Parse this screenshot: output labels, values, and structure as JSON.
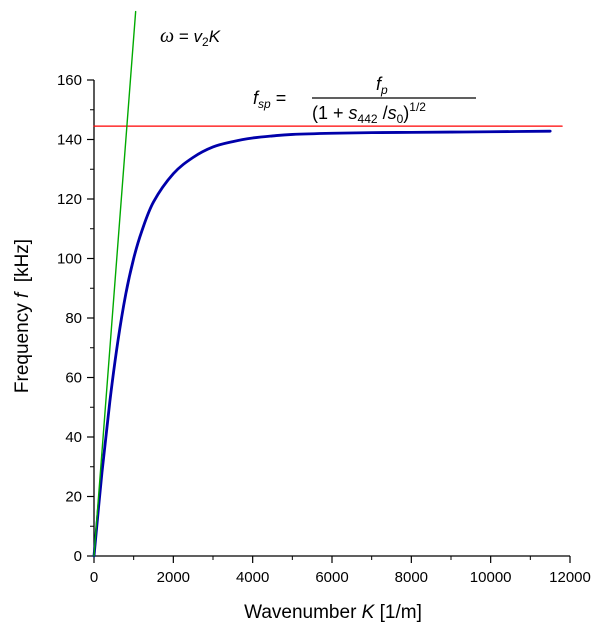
{
  "chart_data": {
    "type": "line",
    "title": "",
    "xlabel": {
      "prefix": "Wavenumber ",
      "var": "K",
      "unit": " [1/m]"
    },
    "ylabel": {
      "prefix": "Frequency ",
      "var": "f",
      "unit": "  [kHz]"
    },
    "xlim": [
      0,
      12000
    ],
    "ylim": [
      0,
      160
    ],
    "x_ticks": [
      0,
      2000,
      4000,
      6000,
      8000,
      10000,
      12000
    ],
    "y_ticks": [
      0,
      20,
      40,
      60,
      80,
      100,
      120,
      140,
      160
    ],
    "grid": false,
    "series": [
      {
        "color": "#0000aa",
        "x": [
          0,
          200,
          400,
          600,
          800,
          1000,
          1200,
          1500,
          2000,
          2500,
          3000,
          3500,
          4000,
          4500,
          5000,
          6000,
          7000,
          8000,
          9000,
          10000,
          11500
        ],
        "y": [
          0,
          28,
          52,
          72,
          88,
          100,
          109,
          119,
          128.5,
          134,
          137.5,
          139.3,
          140.5,
          141.2,
          141.7,
          142.1,
          142.3,
          142.4,
          142.5,
          142.6,
          142.8
        ]
      },
      {
        "color": "#00aa00",
        "x": [
          0,
          1050
        ],
        "y": [
          0,
          183
        ]
      },
      {
        "color": "#ff0000",
        "x": [
          0,
          11800
        ],
        "y": [
          144.5,
          144.5
        ]
      }
    ],
    "annotations": {
      "dispersion": {
        "omega": "ω",
        "eq": " = ",
        "v": "v",
        "v_sub": "2",
        "k": "K"
      },
      "asymptote": {
        "f": "f",
        "f_sub": "sp",
        "eq": " =",
        "num": "f",
        "num_sub": "p",
        "den_open": "(1 + ",
        "s1": "s",
        "s1_sub": "442",
        "slash": " /",
        "s2": "s",
        "s2_sub": "0",
        "den_close": ")",
        "den_sup": "1/2"
      }
    }
  }
}
